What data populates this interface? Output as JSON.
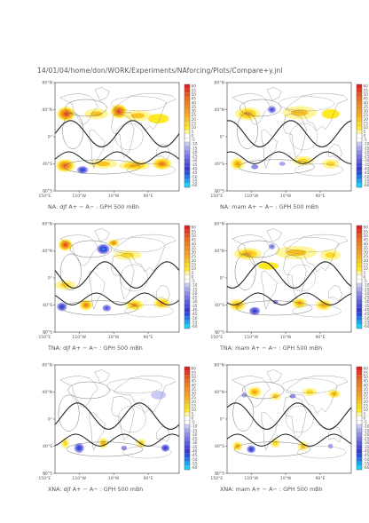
{
  "header": {
    "title": "14/01/04/home/don/WORK/Experiments/NAforcing/Plots/Compare+y.jnl"
  },
  "chart_data": {
    "type": "heatmap",
    "lat_labels": [
      "80°N",
      "40°N",
      "0°",
      "40°S",
      "80°S"
    ],
    "lon_labels": [
      "150°E",
      "110°W",
      "10°W",
      "90°E"
    ],
    "colorbar": {
      "levels": [
        60,
        55,
        50,
        45,
        40,
        35,
        30,
        25,
        20,
        15,
        10,
        5,
        0,
        -5,
        -10,
        -15,
        -20,
        -25,
        -30,
        -35,
        -40,
        -45,
        -50,
        -55,
        -60
      ],
      "colors": [
        "#e51f1f",
        "#e5391f",
        "#e8561f",
        "#ec6d20",
        "#f07d20",
        "#f28d21",
        "#f59e22",
        "#f8ad22",
        "#fbc423",
        "#fdd824",
        "#ffe824",
        "#fff59a",
        "#ffffff",
        "#ffffff",
        "#c9c9f5",
        "#a9a9ef",
        "#8e8ee9",
        "#7676e4",
        "#5e5ede",
        "#4a4ad8",
        "#3838d2",
        "#2a4fe0",
        "#1f79e9",
        "#19a6f1",
        "#14d4f8"
      ]
    },
    "panels": [
      {
        "caption": "NA: djf A+ − A− : GPH 500 mBh",
        "blobs": [
          {
            "x": -148,
            "y": 38,
            "w": 26,
            "h": 12,
            "v": 55
          },
          {
            "x": 5,
            "y": 42,
            "w": 24,
            "h": 12,
            "v": 55
          },
          {
            "x": -60,
            "y": 38,
            "w": 34,
            "h": 9,
            "v": 20
          },
          {
            "x": 60,
            "y": 35,
            "w": 40,
            "h": 9,
            "v": 20
          },
          {
            "x": 120,
            "y": 30,
            "w": 30,
            "h": 8,
            "v": 10
          },
          {
            "x": -150,
            "y": -48,
            "w": 28,
            "h": 11,
            "v": 45
          },
          {
            "x": -100,
            "y": -55,
            "w": 20,
            "h": 8,
            "v": -45
          },
          {
            "x": -40,
            "y": -45,
            "w": 40,
            "h": 8,
            "v": 20
          },
          {
            "x": 50,
            "y": -48,
            "w": 45,
            "h": 8,
            "v": 25
          },
          {
            "x": 130,
            "y": -45,
            "w": 28,
            "h": 10,
            "v": 40
          }
        ]
      },
      {
        "caption": "NA: mam A+ − A− : GPH 500 mBh",
        "blobs": [
          {
            "x": -120,
            "y": 38,
            "w": 36,
            "h": 11,
            "v": 25
          },
          {
            "x": -50,
            "y": 45,
            "w": 16,
            "h": 8,
            "v": -35
          },
          {
            "x": 30,
            "y": 40,
            "w": 50,
            "h": 11,
            "v": 20
          },
          {
            "x": 120,
            "y": 38,
            "w": 26,
            "h": 8,
            "v": 10
          },
          {
            "x": -150,
            "y": -45,
            "w": 20,
            "h": 10,
            "v": 30
          },
          {
            "x": -100,
            "y": -50,
            "w": 20,
            "h": 8,
            "v": -20
          },
          {
            "x": -20,
            "y": -45,
            "w": 18,
            "h": 7,
            "v": -15
          },
          {
            "x": 40,
            "y": -40,
            "w": 30,
            "h": 8,
            "v": 15
          },
          {
            "x": 120,
            "y": -45,
            "w": 25,
            "h": 8,
            "v": 15
          }
        ]
      },
      {
        "caption": "TNA: djf A+ − A− : GPH 500 mBh",
        "blobs": [
          {
            "x": -150,
            "y": 55,
            "w": 20,
            "h": 10,
            "v": 55
          },
          {
            "x": -40,
            "y": 48,
            "w": 22,
            "h": 10,
            "v": -55
          },
          {
            "x": -10,
            "y": 58,
            "w": 16,
            "h": 6,
            "v": 40
          },
          {
            "x": 30,
            "y": 38,
            "w": 40,
            "h": 8,
            "v": 15
          },
          {
            "x": -150,
            "y": -12,
            "w": 30,
            "h": 8,
            "v": 15
          },
          {
            "x": -160,
            "y": -48,
            "w": 18,
            "h": 9,
            "v": -45
          },
          {
            "x": -90,
            "y": -45,
            "w": 20,
            "h": 9,
            "v": 40
          },
          {
            "x": -30,
            "y": -50,
            "w": 18,
            "h": 8,
            "v": -30
          },
          {
            "x": 50,
            "y": -45,
            "w": 28,
            "h": 9,
            "v": 30
          },
          {
            "x": 130,
            "y": -42,
            "w": 25,
            "h": 9,
            "v": 25
          }
        ]
      },
      {
        "caption": "TNA: mam A+ − A− : GPH 500 mBh",
        "blobs": [
          {
            "x": -120,
            "y": 40,
            "w": 40,
            "h": 10,
            "v": 25
          },
          {
            "x": -50,
            "y": 52,
            "w": 14,
            "h": 7,
            "v": -25
          },
          {
            "x": 20,
            "y": 42,
            "w": 60,
            "h": 11,
            "v": 20
          },
          {
            "x": 120,
            "y": 38,
            "w": 30,
            "h": 9,
            "v": 15
          },
          {
            "x": -60,
            "y": 20,
            "w": 30,
            "h": 6,
            "v": 10
          },
          {
            "x": -150,
            "y": -45,
            "w": 24,
            "h": 10,
            "v": 30
          },
          {
            "x": -100,
            "y": -55,
            "w": 20,
            "h": 9,
            "v": -40
          },
          {
            "x": -40,
            "y": -40,
            "w": 15,
            "h": 7,
            "v": -20
          },
          {
            "x": 30,
            "y": -42,
            "w": 22,
            "h": 9,
            "v": 30
          },
          {
            "x": 100,
            "y": -45,
            "w": 24,
            "h": 9,
            "v": 25
          }
        ]
      },
      {
        "caption": "XNA: djf A+ − A− : GPH 500 mBh",
        "blobs": [
          {
            "x": 120,
            "y": 40,
            "w": 22,
            "h": 7,
            "v": -10
          },
          {
            "x": -150,
            "y": -40,
            "w": 12,
            "h": 9,
            "v": 15
          },
          {
            "x": -110,
            "y": -48,
            "w": 18,
            "h": 10,
            "v": -45
          },
          {
            "x": -40,
            "y": -40,
            "w": 14,
            "h": 9,
            "v": 25
          },
          {
            "x": 20,
            "y": -48,
            "w": 16,
            "h": 8,
            "v": -20
          },
          {
            "x": 70,
            "y": -40,
            "w": 14,
            "h": 8,
            "v": 20
          },
          {
            "x": 140,
            "y": -48,
            "w": 16,
            "h": 8,
            "v": -40
          }
        ]
      },
      {
        "caption": "XNA: mam A+ − A− : GPH 500 mBh",
        "blobs": [
          {
            "x": -130,
            "y": 40,
            "w": 16,
            "h": 8,
            "v": -15
          },
          {
            "x": -100,
            "y": 45,
            "w": 20,
            "h": 9,
            "v": 30
          },
          {
            "x": -40,
            "y": 38,
            "w": 16,
            "h": 7,
            "v": 20
          },
          {
            "x": 10,
            "y": 38,
            "w": 18,
            "h": 7,
            "v": -20
          },
          {
            "x": 60,
            "y": 45,
            "w": 20,
            "h": 7,
            "v": 15
          },
          {
            "x": 130,
            "y": 42,
            "w": 18,
            "h": 7,
            "v": 25
          },
          {
            "x": -150,
            "y": -45,
            "w": 14,
            "h": 8,
            "v": 25
          },
          {
            "x": -110,
            "y": -50,
            "w": 16,
            "h": 8,
            "v": -45
          },
          {
            "x": -40,
            "y": -40,
            "w": 14,
            "h": 8,
            "v": 15
          },
          {
            "x": 40,
            "y": -45,
            "w": 16,
            "h": 8,
            "v": 20
          },
          {
            "x": 120,
            "y": -45,
            "w": 14,
            "h": 8,
            "v": -15
          }
        ]
      }
    ]
  }
}
